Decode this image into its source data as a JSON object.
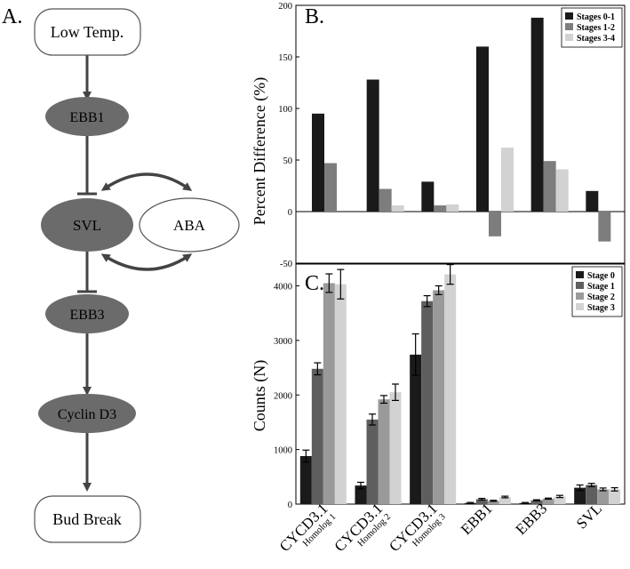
{
  "panel_a": {
    "label": "A.",
    "nodes": {
      "low_temp": "Low Temp.",
      "ebb1": "EBB1",
      "svl": "SVL",
      "aba": "ABA",
      "ebb3": "EBB3",
      "cyclin": "Cyclin D3",
      "bud_break": "Bud Break"
    },
    "colors": {
      "dark_node": "#6b6b6b",
      "edge": "#444444"
    }
  },
  "chart_data": [
    {
      "id": "B",
      "panel_label": "B.",
      "type": "bar",
      "ylabel": "Percent Difference (%)",
      "ylim": [
        -50,
        200
      ],
      "yticks": [
        -50,
        0,
        50,
        100,
        150,
        200
      ],
      "legend_position": "top-right",
      "categories": [
        "CYCD3.1 Homolog 1",
        "CYCD3.1 Homolog 2",
        "CYCD3.1 Homolog 3",
        "EBB1",
        "EBB3",
        "SVL"
      ],
      "series": [
        {
          "name": "Stages 0-1",
          "color": "#1a1a1a",
          "values": [
            95,
            128,
            29,
            160,
            188,
            20
          ]
        },
        {
          "name": "Stages 1-2",
          "color": "#7d7d7d",
          "values": [
            47,
            22,
            6,
            -24,
            49,
            -29
          ]
        },
        {
          "name": "Stages 3-4",
          "color": "#d2d2d2",
          "values": [
            0,
            6,
            7,
            62,
            41,
            0
          ]
        }
      ]
    },
    {
      "id": "C",
      "panel_label": "C.",
      "type": "bar",
      "ylabel": "Counts (N)",
      "ylim": [
        0,
        4400
      ],
      "yticks": [
        0,
        1000,
        2000,
        3000,
        4000
      ],
      "legend_position": "top-right",
      "categories": [
        {
          "main": "CYCD3.1",
          "sub": "Homolog 1"
        },
        {
          "main": "CYCD3.1",
          "sub": "Homolog 2"
        },
        {
          "main": "CYCD3.1",
          "sub": "Homolog 3"
        },
        {
          "main": "EBB1",
          "sub": ""
        },
        {
          "main": "EBB3",
          "sub": ""
        },
        {
          "main": "SVL",
          "sub": ""
        }
      ],
      "series": [
        {
          "name": "Stage 0",
          "color": "#1a1a1a",
          "values": [
            880,
            340,
            2740,
            20,
            20,
            300
          ],
          "errors": [
            110,
            60,
            380,
            10,
            10,
            50
          ]
        },
        {
          "name": "Stage 1",
          "color": "#5e5e5e",
          "values": [
            2480,
            1550,
            3720,
            90,
            70,
            350
          ],
          "errors": [
            110,
            100,
            100,
            15,
            10,
            30
          ]
        },
        {
          "name": "Stage 2",
          "color": "#9a9a9a",
          "values": [
            4050,
            1920,
            3920,
            60,
            100,
            270
          ],
          "errors": [
            170,
            70,
            80,
            10,
            10,
            25
          ]
        },
        {
          "name": "Stage 3",
          "color": "#d2d2d2",
          "values": [
            4030,
            2050,
            4210,
            130,
            140,
            270
          ],
          "errors": [
            270,
            150,
            180,
            15,
            20,
            30
          ]
        }
      ]
    }
  ]
}
